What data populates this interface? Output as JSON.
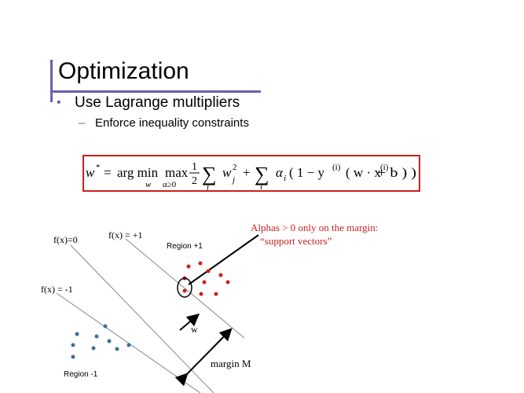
{
  "slide": {
    "title": "Optimization",
    "bullet": "Use Lagrange multipliers",
    "sub_bullet": "Enforce inequality constraints"
  },
  "equation": {
    "w_star": "w",
    "star": "*",
    "equals": "=",
    "argmin": "arg min",
    "argmin_sub": "w",
    "max": "max",
    "max_sub": "α≥0",
    "half_num": "1",
    "half_den": "2",
    "sum1": "∑",
    "sum1_sub": "j",
    "w_j": "w",
    "w_j_sup": "2",
    "w_j_sub": "j",
    "plus": "+",
    "sum2": "∑",
    "sum2_sub": "i",
    "alpha_i": "α",
    "alpha_i_sub": "i",
    "paren_open": "( 1 − y",
    "y_sup": "(i)",
    "paren_mid": "( w · x",
    "x_sup": "(i)",
    "paren_close": "+ b ) )"
  },
  "diagram": {
    "label_f0": "f(x)=0",
    "label_fp1": "f(x) = +1",
    "label_fm1": "f(x) = -1",
    "region_pos": "Region +1",
    "region_neg": "Region -1",
    "w_label": "w",
    "margin_label": "margin M",
    "annotation_line1": "Alphas > 0 only on the margin:",
    "annotation_line2": "“support vectors”"
  },
  "colors": {
    "accent": "#6a5fb0",
    "box_border": "#cc1f1f",
    "positive_points": "#cc1f1f",
    "negative_points": "#3a6fa0",
    "annotation_text": "#cc1f1f",
    "bullet_marker": "#4a6fa5"
  }
}
